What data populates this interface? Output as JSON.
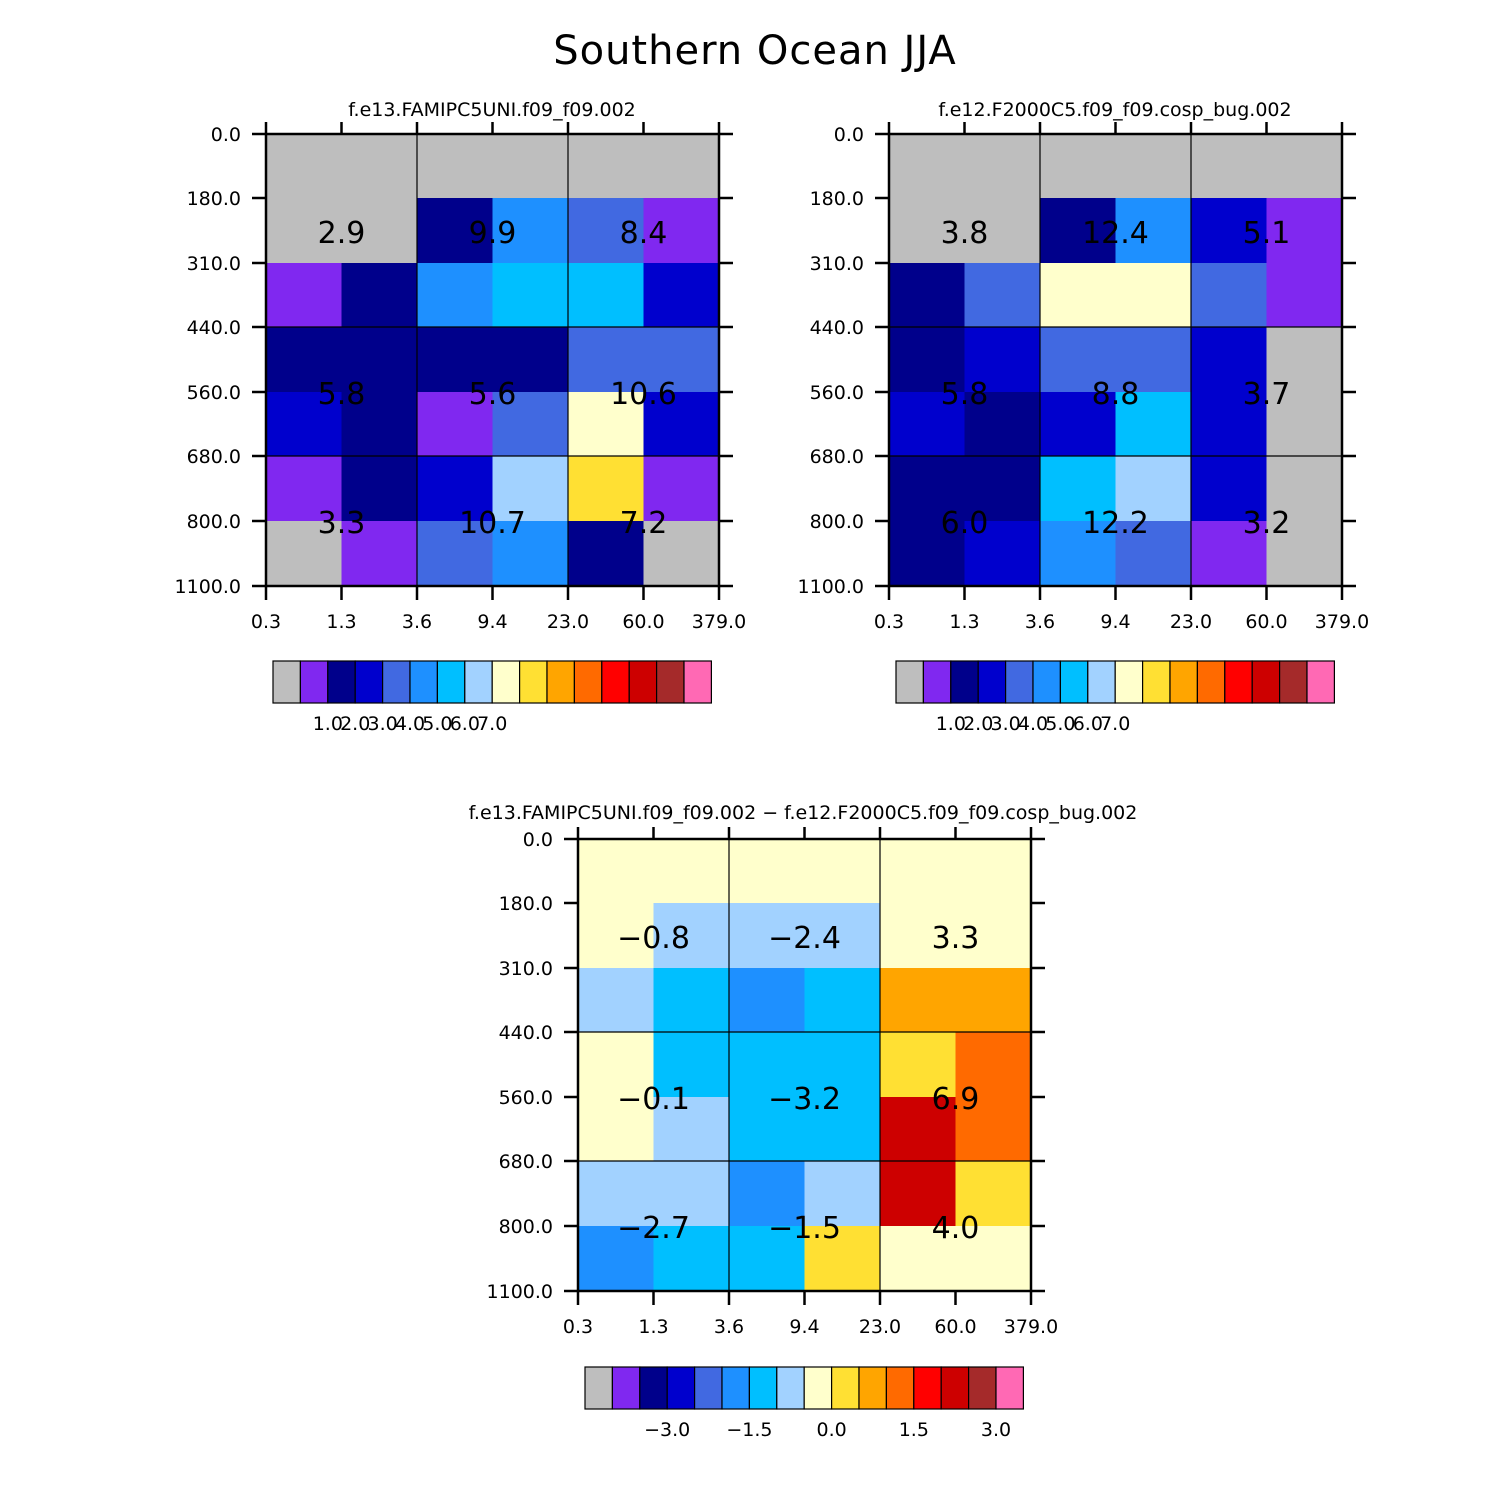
{
  "title": "Southern Ocean JJA",
  "colors": {
    "abs": [
      "#bebebe",
      "#8028f0",
      "#00008b",
      "#0000cd",
      "#4169e1",
      "#1e90ff",
      "#00bfff",
      "#a2d2ff",
      "#ffffcc",
      "#ffe033",
      "#ffa500",
      "#ff6a00",
      "#ff0000",
      "#cd0000",
      "#a52a2a",
      "#ff69b4"
    ],
    "diff": [
      "#bebebe",
      "#8028f0",
      "#00008b",
      "#0000cd",
      "#4169e1",
      "#1e90ff",
      "#00bfff",
      "#a2d2ff",
      "#ffffcc",
      "#ffe033",
      "#ffa500",
      "#ff6a00",
      "#ff0000",
      "#cd0000",
      "#a52a2a",
      "#ff69b4"
    ]
  },
  "chart_data": [
    {
      "type": "heatmap",
      "title": "f.e13.FAMIPC5UNI.f09_f09.002",
      "x_ticks": [
        "0.3",
        "1.3",
        "3.6",
        "9.4",
        "23.0",
        "60.0",
        "379.0"
      ],
      "y_ticks": [
        "0.0",
        "180.0",
        "310.0",
        "440.0",
        "560.0",
        "680.0",
        "800.0",
        "1100.0"
      ],
      "cells": [
        [
          0,
          0,
          0,
          0,
          0,
          0
        ],
        [
          0,
          0,
          2,
          5,
          4,
          1
        ],
        [
          1,
          2,
          5,
          6,
          6,
          3
        ],
        [
          2,
          2,
          2,
          2,
          4,
          4
        ],
        [
          3,
          2,
          1,
          4,
          8,
          3
        ],
        [
          1,
          2,
          3,
          7,
          9,
          1
        ],
        [
          0,
          1,
          4,
          5,
          2,
          0
        ]
      ],
      "box_labels": [
        [
          "2.9",
          "9.9",
          "8.4"
        ],
        [
          "5.8",
          "5.6",
          "10.6"
        ],
        [
          "3.3",
          "10.7",
          "7.2"
        ]
      ],
      "colorbar_labels": [
        "1.0",
        "2.0",
        "3.0",
        "4.0",
        "5.0",
        "6.0",
        "7.0"
      ]
    },
    {
      "type": "heatmap",
      "title": "f.e12.F2000C5.f09_f09.cosp_bug.002",
      "x_ticks": [
        "0.3",
        "1.3",
        "3.6",
        "9.4",
        "23.0",
        "60.0",
        "379.0"
      ],
      "y_ticks": [
        "0.0",
        "180.0",
        "310.0",
        "440.0",
        "560.0",
        "680.0",
        "800.0",
        "1100.0"
      ],
      "cells": [
        [
          0,
          0,
          0,
          0,
          0,
          0
        ],
        [
          0,
          0,
          2,
          5,
          3,
          1
        ],
        [
          2,
          4,
          8,
          8,
          4,
          1
        ],
        [
          2,
          3,
          4,
          4,
          3,
          0
        ],
        [
          3,
          2,
          3,
          6,
          3,
          0
        ],
        [
          2,
          2,
          6,
          7,
          3,
          0
        ],
        [
          2,
          3,
          5,
          4,
          1,
          0
        ]
      ],
      "box_labels": [
        [
          "3.8",
          "12.4",
          "5.1"
        ],
        [
          "5.8",
          "8.8",
          "3.7"
        ],
        [
          "6.0",
          "12.2",
          "3.2"
        ]
      ],
      "colorbar_labels": [
        "1.0",
        "2.0",
        "3.0",
        "4.0",
        "5.0",
        "6.0",
        "7.0"
      ]
    },
    {
      "type": "heatmap",
      "title": "f.e13.FAMIPC5UNI.f09_f09.002 − f.e12.F2000C5.f09_f09.cosp_bug.002",
      "x_ticks": [
        "0.3",
        "1.3",
        "3.6",
        "9.4",
        "23.0",
        "60.0",
        "379.0"
      ],
      "y_ticks": [
        "0.0",
        "180.0",
        "310.0",
        "440.0",
        "560.0",
        "680.0",
        "800.0",
        "1100.0"
      ],
      "cells": [
        [
          8,
          8,
          8,
          8,
          8,
          8
        ],
        [
          8,
          7,
          7,
          7,
          8,
          8
        ],
        [
          7,
          6,
          5,
          6,
          10,
          10
        ],
        [
          8,
          6,
          6,
          6,
          9,
          11
        ],
        [
          8,
          7,
          6,
          6,
          13,
          11
        ],
        [
          7,
          7,
          5,
          7,
          13,
          9
        ],
        [
          5,
          6,
          6,
          9,
          8,
          8
        ]
      ],
      "box_labels": [
        [
          "−0.8",
          "−2.4",
          "3.3"
        ],
        [
          "−0.1",
          "−3.2",
          "6.9"
        ],
        [
          "−2.7",
          "−1.5",
          "4.0"
        ]
      ],
      "colorbar_labels": [
        "−3.0",
        "−1.5",
        "0.0",
        "1.5",
        "3.0"
      ]
    }
  ]
}
